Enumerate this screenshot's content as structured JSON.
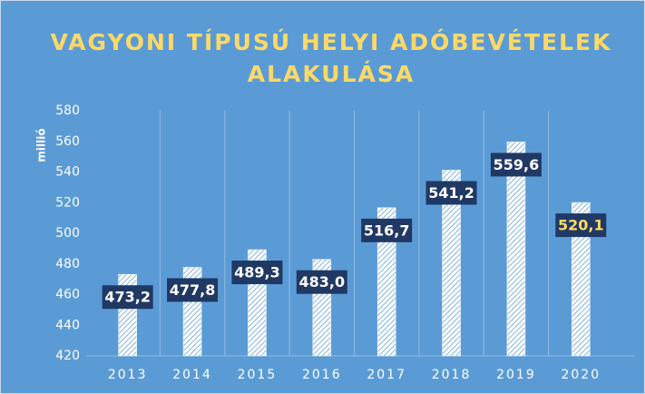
{
  "chart_data": {
    "type": "bar",
    "title": [
      "VAGYONI TÍPUSÚ HELYI ADÓBEVÉTELEK",
      "ALAKULÁSA"
    ],
    "y_label": "millió",
    "categories": [
      "2013",
      "2014",
      "2015",
      "2016",
      "2017",
      "2018",
      "2019",
      "2020"
    ],
    "values": [
      473.2,
      477.8,
      489.3,
      483.0,
      516.7,
      541.2,
      559.6,
      520.1
    ],
    "value_labels": [
      "473,2",
      "477,8",
      "489,3",
      "483,0",
      "516,7",
      "541,2",
      "559,6",
      "520,1"
    ],
    "value_label_colors": [
      "#ffffff",
      "#ffffff",
      "#ffffff",
      "#ffffff",
      "#ffffff",
      "#ffffff",
      "#ffffff",
      "#ffd966"
    ],
    "color": "#ffffff",
    "ylim": [
      420,
      580
    ],
    "yticks": [
      420,
      440,
      460,
      480,
      500,
      520,
      540,
      560,
      580
    ]
  }
}
